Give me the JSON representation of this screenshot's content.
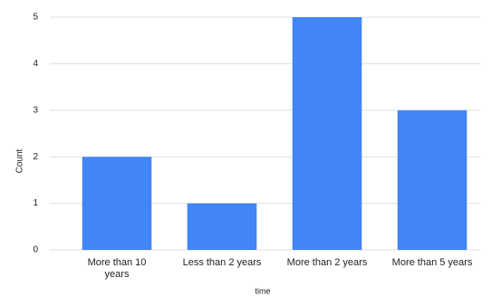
{
  "chart_data": {
    "type": "bar",
    "categories": [
      "More than 10 years",
      "Less than 2 years",
      "More than 2 years",
      "More than 5 years"
    ],
    "values": [
      2,
      1,
      5,
      3
    ],
    "color": "#4285f4",
    "xlabel": "time",
    "ylabel": "Count",
    "ylim": [
      0,
      5
    ],
    "yticks": [
      0,
      1,
      2,
      3,
      4,
      5
    ],
    "grid": true
  }
}
